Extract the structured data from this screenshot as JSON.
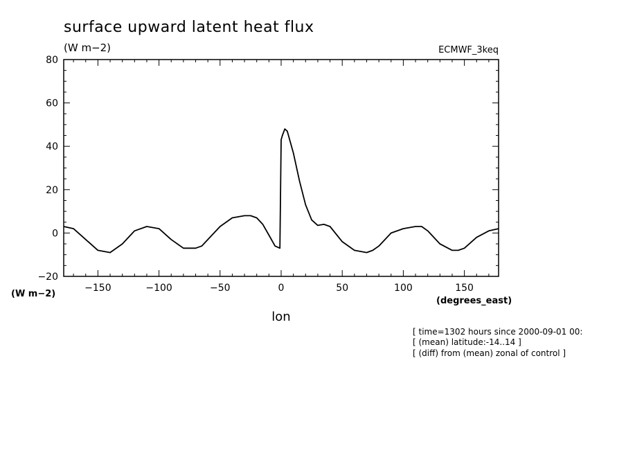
{
  "chart_data": {
    "type": "line",
    "title": "surface upward latent heat flux",
    "units_label": "(W m−2)",
    "yaxis_units_label": "(W m−2)",
    "dataset_label": "ECMWF_3keq",
    "xlabel": "lon",
    "x_units_label": "(degrees_east)",
    "xlim": [
      -178,
      178
    ],
    "ylim": [
      -20,
      80
    ],
    "x_ticks": [
      -150,
      -100,
      -50,
      0,
      50,
      100,
      150
    ],
    "x_tick_labels": [
      "−150",
      "−100",
      "−50",
      "0",
      "50",
      "100",
      "150"
    ],
    "y_ticks": [
      -20,
      0,
      20,
      40,
      60,
      80
    ],
    "y_tick_labels": [
      "−20",
      "0",
      "20",
      "40",
      "60",
      "80"
    ],
    "grid": false,
    "series": [
      {
        "x": [
          -178,
          -170,
          -160,
          -150,
          -140,
          -130,
          -120,
          -110,
          -100,
          -90,
          -80,
          -70,
          -65,
          -60,
          -50,
          -40,
          -30,
          -25,
          -20,
          -15,
          -10,
          -5,
          -1,
          0,
          1,
          3,
          5,
          10,
          15,
          20,
          25,
          30,
          35,
          40,
          50,
          60,
          70,
          75,
          80,
          90,
          100,
          110,
          115,
          120,
          130,
          140,
          145,
          150,
          160,
          170,
          178
        ],
        "y": [
          3,
          2,
          -3,
          -8,
          -9,
          -5,
          1,
          3,
          2,
          -3,
          -7,
          -7,
          -6,
          -3,
          3,
          7,
          8,
          8,
          7,
          4,
          -1,
          -6,
          -7,
          43,
          45,
          48,
          47,
          37,
          24,
          13,
          6,
          3.5,
          4,
          3,
          -4,
          -8,
          -9,
          -8,
          -6,
          0,
          2,
          3,
          3,
          1,
          -5,
          -8,
          -8,
          -7,
          -2,
          1,
          2
        ]
      }
    ],
    "annotations": [
      "[ time=1302 hours since 2000-09-01 00:",
      "[ (mean) latitude:-14..14 ]",
      "[ (diff) from (mean) zonal of control ]"
    ]
  }
}
